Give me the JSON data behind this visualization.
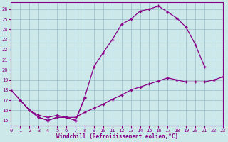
{
  "bg_color": "#cce8e8",
  "grid_color": "#99bbcc",
  "line_color": "#880088",
  "xlabel": "Windchill (Refroidissement éolien,°C)",
  "xlim": [
    0,
    23
  ],
  "ylim": [
    14.5,
    26.7
  ],
  "xticks": [
    0,
    1,
    2,
    3,
    4,
    5,
    6,
    7,
    8,
    9,
    10,
    11,
    12,
    13,
    14,
    15,
    16,
    17,
    18,
    19,
    20,
    21,
    22,
    23
  ],
  "yticks": [
    15,
    16,
    17,
    18,
    19,
    20,
    21,
    22,
    23,
    24,
    25,
    26
  ],
  "line1_x": [
    0,
    1,
    2,
    3,
    4,
    5,
    6,
    7,
    8,
    9,
    10,
    11,
    12,
    13,
    14,
    15,
    16,
    17,
    18,
    19,
    20,
    21
  ],
  "line1_y": [
    18.0,
    17.0,
    16.0,
    15.3,
    15.0,
    15.3,
    15.3,
    15.0,
    17.3,
    20.3,
    21.7,
    23.0,
    24.5,
    25.0,
    25.8,
    26.0,
    26.3,
    25.7,
    25.1,
    24.2,
    22.5,
    20.3
  ],
  "line2_x": [
    0,
    1,
    2,
    3,
    4,
    5,
    6,
    7,
    8,
    9,
    10,
    11,
    12,
    13,
    14,
    15,
    16,
    17,
    18,
    19,
    20,
    21,
    22,
    23
  ],
  "line2_y": [
    18.0,
    17.0,
    16.0,
    15.5,
    15.3,
    15.5,
    15.3,
    15.3,
    15.8,
    16.2,
    16.6,
    17.1,
    17.5,
    18.0,
    18.3,
    18.6,
    18.9,
    19.2,
    19.0,
    18.8,
    18.8,
    18.8,
    19.0,
    19.3
  ],
  "line3_x": [
    1,
    2,
    3,
    4,
    5,
    6,
    7,
    8
  ],
  "line3_y": [
    17.0,
    16.0,
    15.3,
    15.0,
    15.3,
    15.3,
    15.0,
    17.2
  ]
}
